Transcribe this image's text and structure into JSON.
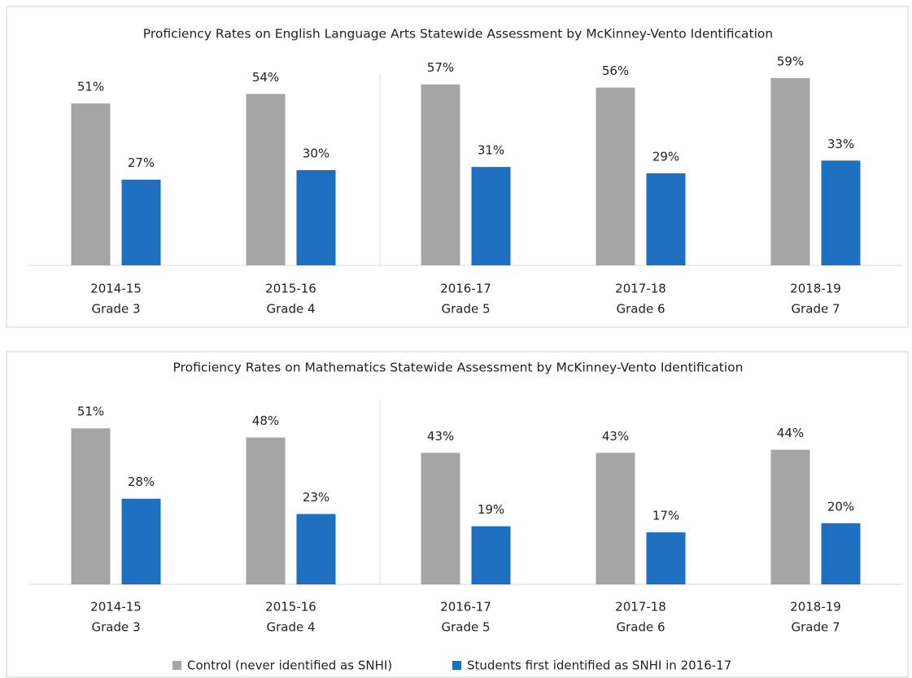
{
  "chart_data": [
    {
      "type": "bar",
      "title": "Proficiency Rates on English Language Arts Statewide Assessment by McKinney-Vento Identification",
      "categories": [
        [
          "2014-15",
          "Grade 3"
        ],
        [
          "2015-16",
          "Grade 4"
        ],
        [
          "2016-17",
          "Grade 5"
        ],
        [
          "2017-18",
          "Grade 6"
        ],
        [
          "2018-19",
          "Grade 7"
        ]
      ],
      "series": [
        {
          "color": "#a5a5a5",
          "values": [
            51,
            54,
            57,
            56,
            59
          ],
          "value_labels": [
            "51%",
            "54%",
            "57%",
            "56%",
            "59%"
          ]
        },
        {
          "color": "#1f6fc0",
          "values": [
            27,
            30,
            31,
            29,
            33
          ],
          "value_labels": [
            "27%",
            "30%",
            "31%",
            "29%",
            "33%"
          ]
        }
      ]
    },
    {
      "type": "bar",
      "title": "Proficiency Rates on Mathematics Statewide Assessment by McKinney-Vento Identification",
      "categories": [
        [
          "2014-15",
          "Grade 3"
        ],
        [
          "2015-16",
          "Grade 4"
        ],
        [
          "2016-17",
          "Grade 5"
        ],
        [
          "2017-18",
          "Grade 6"
        ],
        [
          "2018-19",
          "Grade 7"
        ]
      ],
      "series": [
        {
          "name": "Control (never identified as SNHI)",
          "color": "#a5a5a5",
          "values": [
            51,
            48,
            43,
            43,
            44
          ],
          "value_labels": [
            "51%",
            "48%",
            "43%",
            "43%",
            "44%"
          ]
        },
        {
          "name": "Students first identified as SNHI in 2016-17",
          "color": "#1f6fc0",
          "values": [
            28,
            23,
            19,
            17,
            20
          ],
          "value_labels": [
            "28%",
            "23%",
            "19%",
            "17%",
            "20%"
          ]
        }
      ],
      "legend": "bottom"
    }
  ]
}
